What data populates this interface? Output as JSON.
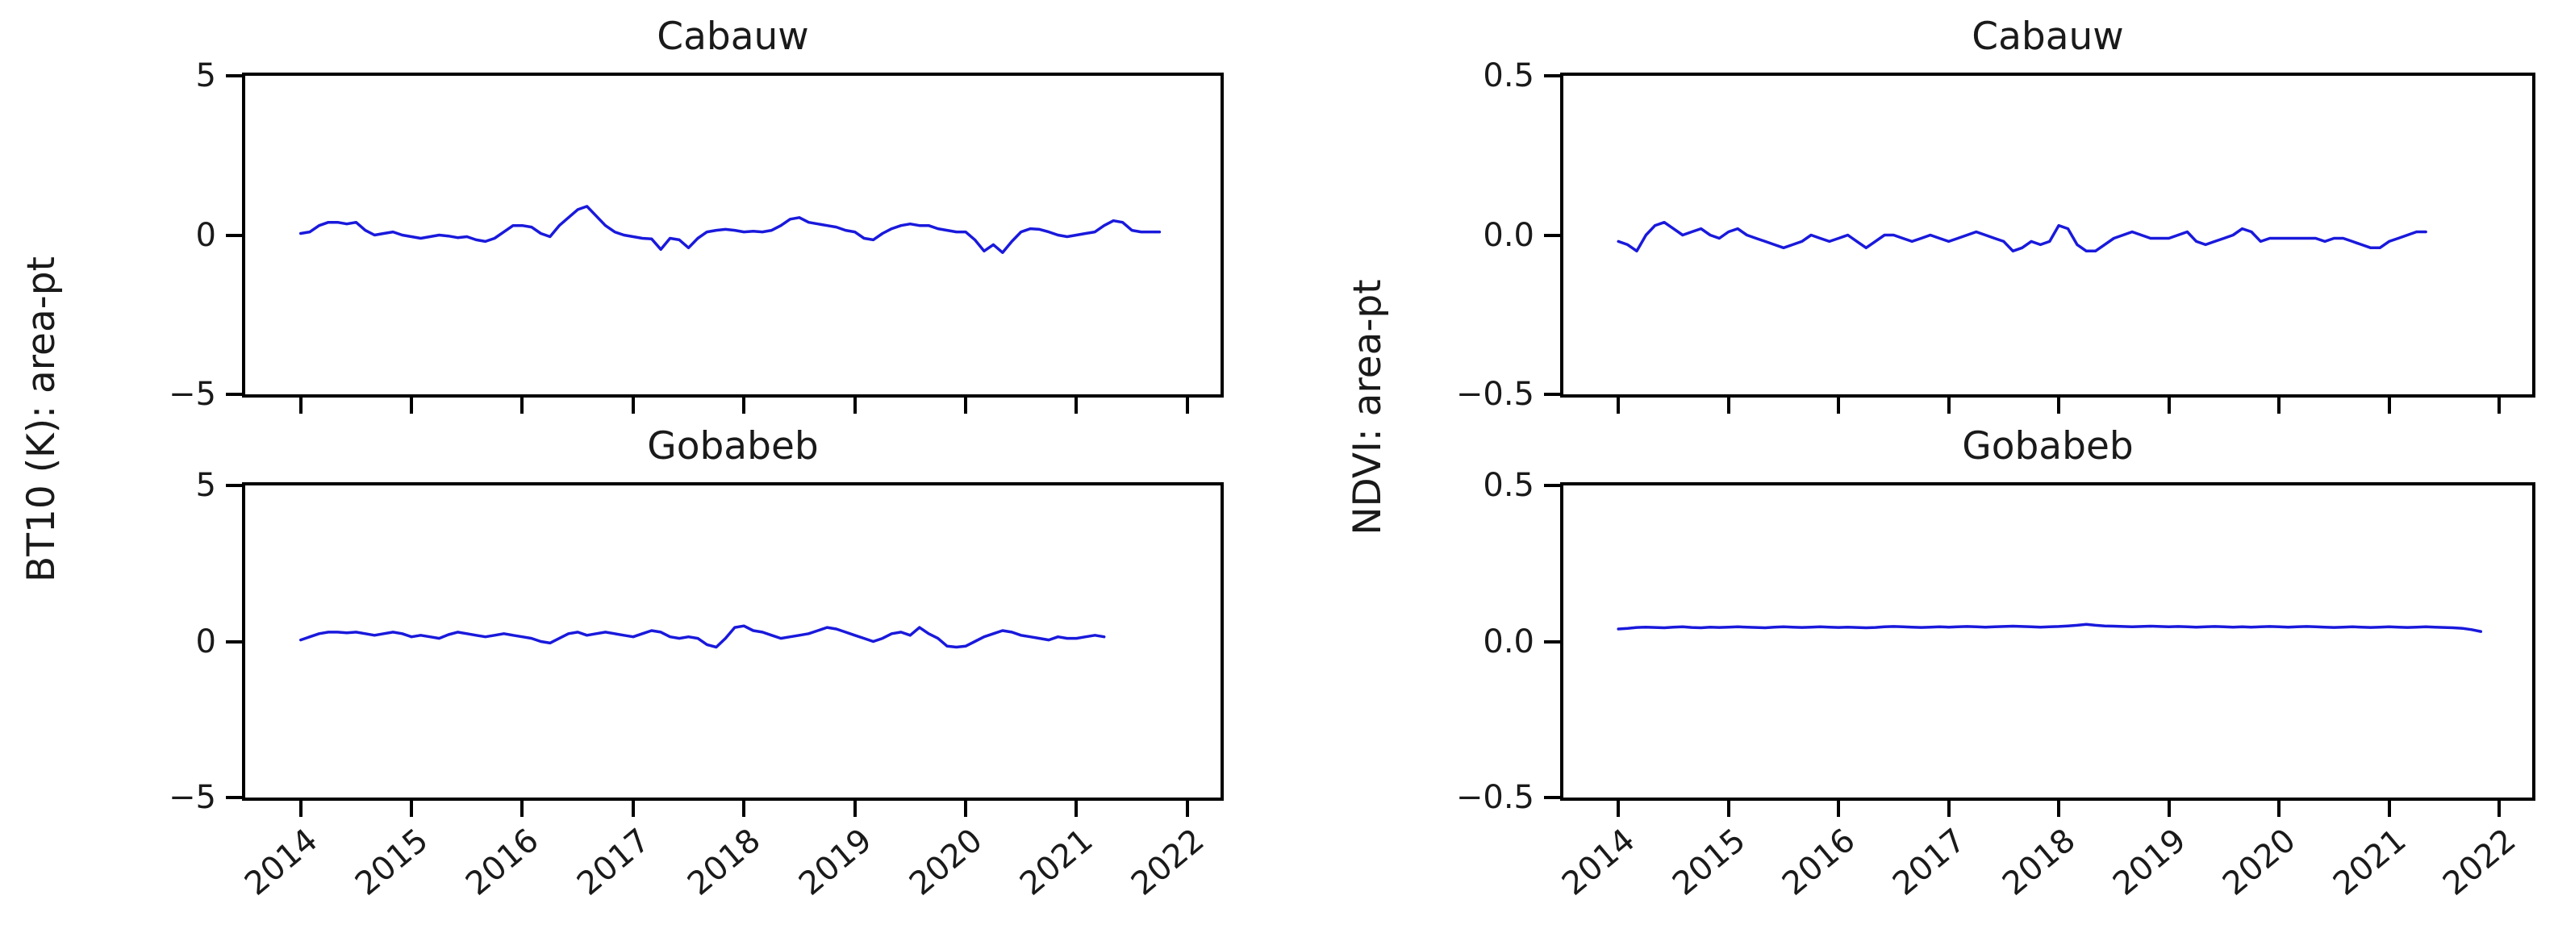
{
  "figure": {
    "background": "#ffffff",
    "axis_color": "#000000",
    "line_color": "#1919dc",
    "ylabel_left": "BT10 (K): area-pt",
    "ylabel_right": "NDVI: area-pt"
  },
  "chart_data": [
    {
      "type": "line",
      "title": "Cabauw",
      "group_ylabel": "BT10 (K): area-pt",
      "legend": "none",
      "grid": false,
      "xlim": [
        2013.5,
        2022.3
      ],
      "ylim": [
        -5,
        5
      ],
      "yticks": [
        {
          "value": 5,
          "label": "5"
        },
        {
          "value": 0,
          "label": "0"
        },
        {
          "value": -5,
          "label": "−5"
        }
      ],
      "xticks": [
        2014,
        2015,
        2016,
        2017,
        2018,
        2019,
        2020,
        2021,
        2022
      ],
      "show_xtick_labels": false,
      "x_start": 2014.0,
      "x_step_years": 0.0833333,
      "values": [
        0.05,
        0.1,
        0.3,
        0.4,
        0.4,
        0.35,
        0.4,
        0.15,
        0.0,
        0.05,
        0.1,
        0.0,
        -0.05,
        -0.1,
        -0.05,
        0.0,
        -0.03,
        -0.08,
        -0.05,
        -0.15,
        -0.2,
        -0.1,
        0.1,
        0.3,
        0.3,
        0.25,
        0.05,
        -0.05,
        0.3,
        0.55,
        0.8,
        0.9,
        0.6,
        0.3,
        0.1,
        0.0,
        -0.05,
        -0.1,
        -0.12,
        -0.45,
        -0.1,
        -0.15,
        -0.4,
        -0.1,
        0.1,
        0.15,
        0.18,
        0.15,
        0.1,
        0.12,
        0.1,
        0.15,
        0.3,
        0.5,
        0.55,
        0.4,
        0.35,
        0.3,
        0.25,
        0.15,
        0.1,
        -0.1,
        -0.15,
        0.05,
        0.2,
        0.3,
        0.35,
        0.3,
        0.3,
        0.2,
        0.15,
        0.1,
        0.1,
        -0.15,
        -0.5,
        -0.3,
        -0.55,
        -0.2,
        0.1,
        0.2,
        0.18,
        0.1,
        0.0,
        -0.05,
        0.0,
        0.05,
        0.1,
        0.3,
        0.45,
        0.4,
        0.15,
        0.1,
        0.1,
        0.1
      ]
    },
    {
      "type": "line",
      "title": "Cabauw",
      "group_ylabel": "NDVI: area-pt",
      "legend": "none",
      "grid": false,
      "xlim": [
        2013.5,
        2022.3
      ],
      "ylim": [
        -0.5,
        0.5
      ],
      "yticks": [
        {
          "value": 0.5,
          "label": "0.5"
        },
        {
          "value": 0.0,
          "label": "0.0"
        },
        {
          "value": -0.5,
          "label": "−0.5"
        }
      ],
      "xticks": [
        2014,
        2015,
        2016,
        2017,
        2018,
        2019,
        2020,
        2021,
        2022
      ],
      "show_xtick_labels": false,
      "x_start": 2014.0,
      "x_step_years": 0.0833333,
      "values": [
        -0.02,
        -0.03,
        -0.05,
        0.0,
        0.03,
        0.04,
        0.02,
        0.0,
        0.01,
        0.02,
        0.0,
        -0.01,
        0.01,
        0.02,
        0.0,
        -0.01,
        -0.02,
        -0.03,
        -0.04,
        -0.03,
        -0.02,
        0.0,
        -0.01,
        -0.02,
        -0.01,
        0.0,
        -0.02,
        -0.04,
        -0.02,
        0.0,
        0.0,
        -0.01,
        -0.02,
        -0.01,
        0.0,
        -0.01,
        -0.02,
        -0.01,
        0.0,
        0.01,
        0.0,
        -0.01,
        -0.02,
        -0.05,
        -0.04,
        -0.02,
        -0.03,
        -0.02,
        0.03,
        0.02,
        -0.03,
        -0.05,
        -0.05,
        -0.03,
        -0.01,
        0.0,
        0.01,
        0.0,
        -0.01,
        -0.01,
        -0.01,
        0.0,
        0.01,
        -0.02,
        -0.03,
        -0.02,
        -0.01,
        0.0,
        0.02,
        0.01,
        -0.02,
        -0.01,
        -0.01,
        -0.01,
        -0.01,
        -0.01,
        -0.01,
        -0.02,
        -0.01,
        -0.01,
        -0.02,
        -0.03,
        -0.04,
        -0.04,
        -0.02,
        -0.01,
        0.0,
        0.01,
        0.01
      ]
    },
    {
      "type": "line",
      "title": "Gobabeb",
      "group_ylabel": "BT10 (K): area-pt",
      "legend": "none",
      "grid": false,
      "xlim": [
        2013.5,
        2022.3
      ],
      "ylim": [
        -5,
        5
      ],
      "yticks": [
        {
          "value": 5,
          "label": "5"
        },
        {
          "value": 0,
          "label": "0"
        },
        {
          "value": -5,
          "label": "−5"
        }
      ],
      "xticks": [
        2014,
        2015,
        2016,
        2017,
        2018,
        2019,
        2020,
        2021,
        2022
      ],
      "show_xtick_labels": true,
      "x_start": 2014.0,
      "x_step_years": 0.0833333,
      "values": [
        0.05,
        0.15,
        0.25,
        0.3,
        0.3,
        0.28,
        0.3,
        0.25,
        0.2,
        0.25,
        0.3,
        0.25,
        0.15,
        0.2,
        0.15,
        0.1,
        0.22,
        0.3,
        0.25,
        0.2,
        0.15,
        0.2,
        0.25,
        0.2,
        0.15,
        0.1,
        0.0,
        -0.05,
        0.1,
        0.25,
        0.3,
        0.2,
        0.25,
        0.3,
        0.25,
        0.2,
        0.15,
        0.25,
        0.35,
        0.3,
        0.15,
        0.1,
        0.15,
        0.1,
        -0.1,
        -0.18,
        0.1,
        0.45,
        0.5,
        0.35,
        0.3,
        0.2,
        0.1,
        0.15,
        0.2,
        0.25,
        0.35,
        0.45,
        0.4,
        0.3,
        0.2,
        0.1,
        0.0,
        0.1,
        0.25,
        0.3,
        0.2,
        0.45,
        0.25,
        0.1,
        -0.15,
        -0.18,
        -0.15,
        0.0,
        0.15,
        0.25,
        0.35,
        0.3,
        0.2,
        0.15,
        0.1,
        0.05,
        0.15,
        0.1,
        0.1,
        0.15,
        0.2,
        0.15
      ]
    },
    {
      "type": "line",
      "title": "Gobabeb",
      "group_ylabel": "NDVI: area-pt",
      "legend": "none",
      "grid": false,
      "xlim": [
        2013.5,
        2022.3
      ],
      "ylim": [
        -0.5,
        0.5
      ],
      "yticks": [
        {
          "value": 0.5,
          "label": "0.5"
        },
        {
          "value": 0.0,
          "label": "0.0"
        },
        {
          "value": -0.5,
          "label": "−0.5"
        }
      ],
      "xticks": [
        2014,
        2015,
        2016,
        2017,
        2018,
        2019,
        2020,
        2021,
        2022
      ],
      "show_xtick_labels": true,
      "x_start": 2014.0,
      "x_step_years": 0.0833333,
      "values": [
        0.04,
        0.042,
        0.045,
        0.046,
        0.045,
        0.044,
        0.046,
        0.047,
        0.045,
        0.044,
        0.046,
        0.045,
        0.046,
        0.047,
        0.046,
        0.045,
        0.044,
        0.046,
        0.047,
        0.046,
        0.045,
        0.046,
        0.047,
        0.046,
        0.045,
        0.046,
        0.045,
        0.044,
        0.045,
        0.047,
        0.048,
        0.047,
        0.046,
        0.045,
        0.046,
        0.047,
        0.046,
        0.047,
        0.048,
        0.047,
        0.046,
        0.047,
        0.048,
        0.049,
        0.048,
        0.047,
        0.046,
        0.047,
        0.048,
        0.05,
        0.052,
        0.055,
        0.052,
        0.05,
        0.049,
        0.048,
        0.047,
        0.048,
        0.049,
        0.048,
        0.047,
        0.048,
        0.047,
        0.046,
        0.047,
        0.048,
        0.047,
        0.046,
        0.047,
        0.046,
        0.047,
        0.048,
        0.047,
        0.046,
        0.047,
        0.048,
        0.047,
        0.046,
        0.045,
        0.046,
        0.047,
        0.046,
        0.045,
        0.046,
        0.047,
        0.046,
        0.045,
        0.046,
        0.047,
        0.046,
        0.045,
        0.044,
        0.042,
        0.038,
        0.032
      ]
    }
  ]
}
